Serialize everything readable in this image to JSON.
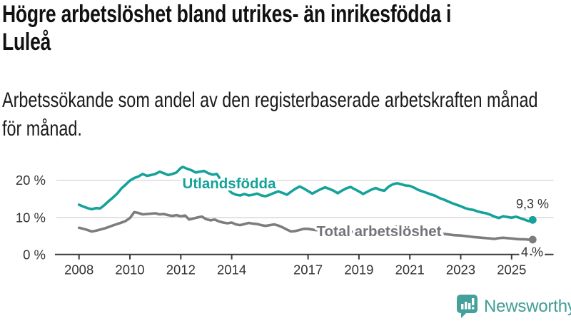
{
  "header": {
    "title_lines": [
      "Högre arbetslöshet bland utrikes- än inrikesfödda i",
      "Luleå"
    ],
    "subtitle_lines": [
      "Arbetssökande som andel av den registerbaserade arbetskraften månad",
      "för månad."
    ]
  },
  "chart_data": {
    "type": "line",
    "unit": "%",
    "title": "Högre arbetslöshet bland utrikes- än inrikesfödda i Luleå",
    "subtitle": "Arbetssökande som andel av den registerbaserade arbetskraften månad för månad.",
    "xlabel": "",
    "ylabel": "",
    "xlim": [
      2007.1,
      2026.6
    ],
    "ylim": [
      0,
      24
    ],
    "grid": "horizontal",
    "legend_position": "inline-labels",
    "y_ticks": [
      {
        "value": 20,
        "label": "20 %"
      },
      {
        "value": 10,
        "label": "10 %"
      },
      {
        "value": 0,
        "label": "0 %"
      }
    ],
    "x_ticks": [
      {
        "value": 2008,
        "label": "2008"
      },
      {
        "value": 2010,
        "label": "2010"
      },
      {
        "value": 2012,
        "label": "2012"
      },
      {
        "value": 2014,
        "label": "2014"
      },
      {
        "value": 2017,
        "label": "2017"
      },
      {
        "value": 2019,
        "label": "2019"
      },
      {
        "value": 2021,
        "label": "2021"
      },
      {
        "value": 2023,
        "label": "2023"
      },
      {
        "value": 2025,
        "label": "2025"
      }
    ],
    "series": [
      {
        "name": "Utlandsfödda",
        "color": "#15a29a",
        "end_label": "9,3 %",
        "end_value": 9.3,
        "points": [
          [
            2008.0,
            13.4
          ],
          [
            2008.17,
            12.9
          ],
          [
            2008.33,
            12.5
          ],
          [
            2008.5,
            12.2
          ],
          [
            2008.67,
            12.5
          ],
          [
            2008.83,
            12.4
          ],
          [
            2009.0,
            13.3
          ],
          [
            2009.17,
            14.4
          ],
          [
            2009.33,
            15.3
          ],
          [
            2009.5,
            16.4
          ],
          [
            2009.67,
            17.8
          ],
          [
            2009.83,
            18.8
          ],
          [
            2010.0,
            19.9
          ],
          [
            2010.17,
            20.6
          ],
          [
            2010.33,
            21.0
          ],
          [
            2010.5,
            21.7
          ],
          [
            2010.67,
            21.2
          ],
          [
            2010.83,
            21.4
          ],
          [
            2011.0,
            21.7
          ],
          [
            2011.17,
            22.3
          ],
          [
            2011.33,
            21.9
          ],
          [
            2011.5,
            21.4
          ],
          [
            2011.67,
            21.7
          ],
          [
            2011.83,
            22.1
          ],
          [
            2012.0,
            23.3
          ],
          [
            2012.08,
            23.6
          ],
          [
            2012.25,
            23.1
          ],
          [
            2012.42,
            22.7
          ],
          [
            2012.58,
            22.1
          ],
          [
            2012.75,
            22.3
          ],
          [
            2012.92,
            22.5
          ],
          [
            2013.08,
            21.9
          ],
          [
            2013.25,
            21.5
          ],
          [
            2013.42,
            21.7
          ],
          [
            2013.6,
            19.8
          ],
          [
            2013.8,
            18.0
          ],
          [
            2014.0,
            16.6
          ],
          [
            2014.17,
            16.1
          ],
          [
            2014.33,
            15.9
          ],
          [
            2014.5,
            16.3
          ],
          [
            2014.67,
            15.9
          ],
          [
            2014.83,
            16.1
          ],
          [
            2015.0,
            16.4
          ],
          [
            2015.17,
            15.9
          ],
          [
            2015.33,
            15.7
          ],
          [
            2015.5,
            16.1
          ],
          [
            2015.67,
            16.6
          ],
          [
            2015.83,
            17.0
          ],
          [
            2016.0,
            16.6
          ],
          [
            2016.17,
            16.1
          ],
          [
            2016.33,
            16.9
          ],
          [
            2016.5,
            17.7
          ],
          [
            2016.67,
            18.3
          ],
          [
            2016.83,
            17.8
          ],
          [
            2017.0,
            17.1
          ],
          [
            2017.17,
            16.4
          ],
          [
            2017.33,
            17.0
          ],
          [
            2017.5,
            17.6
          ],
          [
            2017.67,
            18.1
          ],
          [
            2017.83,
            17.7
          ],
          [
            2018.0,
            17.2
          ],
          [
            2018.17,
            16.5
          ],
          [
            2018.33,
            17.2
          ],
          [
            2018.5,
            17.8
          ],
          [
            2018.67,
            18.2
          ],
          [
            2018.83,
            17.6
          ],
          [
            2019.0,
            17.0
          ],
          [
            2019.17,
            16.3
          ],
          [
            2019.33,
            16.9
          ],
          [
            2019.5,
            17.5
          ],
          [
            2019.67,
            17.9
          ],
          [
            2019.83,
            17.4
          ],
          [
            2020.0,
            17.2
          ],
          [
            2020.17,
            18.3
          ],
          [
            2020.33,
            18.9
          ],
          [
            2020.5,
            19.2
          ],
          [
            2020.67,
            18.9
          ],
          [
            2020.83,
            18.6
          ],
          [
            2021.0,
            18.5
          ],
          [
            2021.17,
            18.0
          ],
          [
            2021.33,
            17.4
          ],
          [
            2021.5,
            17.0
          ],
          [
            2021.67,
            16.6
          ],
          [
            2021.83,
            16.2
          ],
          [
            2022.0,
            15.8
          ],
          [
            2022.17,
            15.2
          ],
          [
            2022.33,
            14.8
          ],
          [
            2022.5,
            14.3
          ],
          [
            2022.67,
            13.8
          ],
          [
            2022.83,
            13.4
          ],
          [
            2023.0,
            13.0
          ],
          [
            2023.17,
            12.5
          ],
          [
            2023.33,
            12.2
          ],
          [
            2023.5,
            12.0
          ],
          [
            2023.67,
            11.6
          ],
          [
            2023.83,
            11.3
          ],
          [
            2024.0,
            11.1
          ],
          [
            2024.17,
            10.7
          ],
          [
            2024.33,
            10.2
          ],
          [
            2024.5,
            9.8
          ],
          [
            2024.67,
            10.3
          ],
          [
            2024.83,
            10.1
          ],
          [
            2025.0,
            9.9
          ],
          [
            2025.17,
            10.2
          ],
          [
            2025.33,
            9.8
          ],
          [
            2025.5,
            9.4
          ],
          [
            2025.67,
            9.0
          ],
          [
            2025.83,
            9.3
          ]
        ]
      },
      {
        "name": "Total arbetslöshet",
        "color": "#7d7d7d",
        "end_label": "4 %",
        "end_value": 4.0,
        "points": [
          [
            2008.0,
            7.2
          ],
          [
            2008.17,
            6.9
          ],
          [
            2008.33,
            6.6
          ],
          [
            2008.5,
            6.2
          ],
          [
            2008.67,
            6.4
          ],
          [
            2008.83,
            6.7
          ],
          [
            2009.0,
            7.0
          ],
          [
            2009.17,
            7.4
          ],
          [
            2009.33,
            7.8
          ],
          [
            2009.5,
            8.2
          ],
          [
            2009.67,
            8.6
          ],
          [
            2009.83,
            9.0
          ],
          [
            2010.0,
            9.8
          ],
          [
            2010.17,
            11.4
          ],
          [
            2010.33,
            11.2
          ],
          [
            2010.5,
            10.8
          ],
          [
            2010.67,
            10.9
          ],
          [
            2010.83,
            11.0
          ],
          [
            2011.0,
            11.1
          ],
          [
            2011.17,
            10.8
          ],
          [
            2011.33,
            10.9
          ],
          [
            2011.5,
            10.6
          ],
          [
            2011.67,
            10.4
          ],
          [
            2011.83,
            10.6
          ],
          [
            2012.0,
            10.3
          ],
          [
            2012.17,
            10.5
          ],
          [
            2012.33,
            9.4
          ],
          [
            2012.5,
            9.7
          ],
          [
            2012.67,
            10.0
          ],
          [
            2012.83,
            10.2
          ],
          [
            2013.0,
            9.5
          ],
          [
            2013.17,
            9.2
          ],
          [
            2013.33,
            9.4
          ],
          [
            2013.5,
            8.9
          ],
          [
            2013.67,
            8.6
          ],
          [
            2013.83,
            8.4
          ],
          [
            2014.0,
            8.6
          ],
          [
            2014.17,
            8.1
          ],
          [
            2014.33,
            7.9
          ],
          [
            2014.5,
            8.2
          ],
          [
            2014.67,
            8.5
          ],
          [
            2014.83,
            8.3
          ],
          [
            2015.0,
            8.2
          ],
          [
            2015.17,
            7.9
          ],
          [
            2015.33,
            7.7
          ],
          [
            2015.5,
            7.9
          ],
          [
            2015.67,
            8.1
          ],
          [
            2015.83,
            7.8
          ],
          [
            2016.0,
            7.3
          ],
          [
            2016.17,
            6.7
          ],
          [
            2016.33,
            6.2
          ],
          [
            2016.5,
            6.3
          ],
          [
            2016.67,
            6.6
          ],
          [
            2016.83,
            6.9
          ],
          [
            2017.0,
            6.9
          ],
          [
            2017.25,
            6.6
          ],
          [
            2017.5,
            6.5
          ],
          [
            2017.75,
            6.4
          ],
          [
            2018.0,
            6.3
          ],
          [
            2018.25,
            6.1
          ],
          [
            2018.5,
            6.2
          ],
          [
            2018.75,
            6.1
          ],
          [
            2019.0,
            6.2
          ],
          [
            2019.25,
            6.0
          ],
          [
            2019.5,
            6.1
          ],
          [
            2019.75,
            6.3
          ],
          [
            2020.0,
            6.6
          ],
          [
            2020.25,
            7.2
          ],
          [
            2020.5,
            7.5
          ],
          [
            2020.75,
            7.3
          ],
          [
            2021.0,
            7.1
          ],
          [
            2021.25,
            6.8
          ],
          [
            2021.5,
            6.5
          ],
          [
            2021.75,
            6.2
          ],
          [
            2022.0,
            5.9
          ],
          [
            2022.25,
            5.6
          ],
          [
            2022.5,
            5.4
          ],
          [
            2022.75,
            5.2
          ],
          [
            2023.0,
            5.1
          ],
          [
            2023.25,
            4.9
          ],
          [
            2023.5,
            4.7
          ],
          [
            2023.67,
            4.6
          ],
          [
            2023.83,
            4.5
          ],
          [
            2024.0,
            4.4
          ],
          [
            2024.17,
            4.3
          ],
          [
            2024.33,
            4.2
          ],
          [
            2024.5,
            4.4
          ],
          [
            2024.67,
            4.5
          ],
          [
            2024.83,
            4.4
          ],
          [
            2025.0,
            4.3
          ],
          [
            2025.17,
            4.2
          ],
          [
            2025.33,
            4.1
          ],
          [
            2025.5,
            4.1
          ],
          [
            2025.67,
            4.0
          ],
          [
            2025.83,
            4.0
          ]
        ]
      }
    ]
  },
  "footer": {
    "brand": "Newsworthy",
    "brand_color": "#3f9d96",
    "logo_icon": "bar-chart-speech-bubble-icon"
  }
}
